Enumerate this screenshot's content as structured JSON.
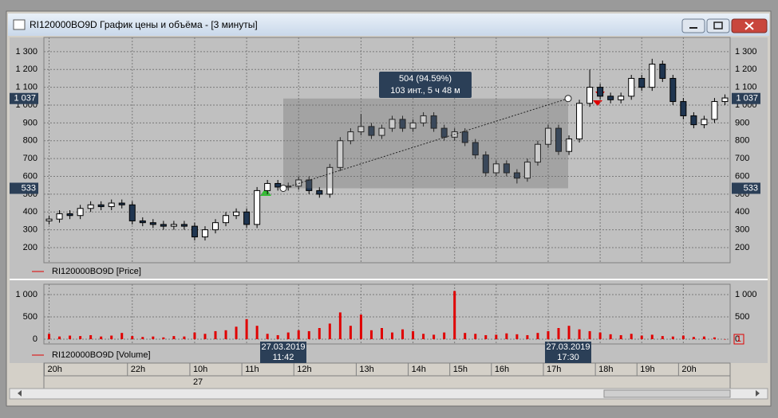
{
  "window": {
    "title": "RI120000BO9D График цены и объёма - [3 минуты]"
  },
  "chart_data": [
    {
      "type": "candlestick",
      "categories": [
        "20h",
        null,
        null,
        null,
        null,
        null,
        null,
        null,
        "22h",
        null,
        null,
        null,
        null,
        null,
        "10h",
        null,
        null,
        null,
        null,
        "11h",
        null,
        null,
        null,
        null,
        "12h",
        null,
        null,
        null,
        null,
        null,
        "13h",
        null,
        null,
        null,
        null,
        "14h",
        null,
        null,
        null,
        "15h",
        null,
        null,
        null,
        "16h",
        null,
        null,
        null,
        null,
        "17h",
        null,
        null,
        null,
        null,
        "18h",
        null,
        null,
        null,
        "19h",
        null,
        null,
        null,
        "20h",
        null,
        null,
        null,
        null
      ],
      "date_label": "27",
      "open": [
        350,
        360,
        390,
        380,
        420,
        440,
        430,
        450,
        440,
        350,
        340,
        330,
        320,
        330,
        320,
        260,
        300,
        340,
        380,
        400,
        330,
        520,
        560,
        540,
        545,
        580,
        520,
        500,
        650,
        800,
        850,
        880,
        830,
        870,
        920,
        870,
        900,
        940,
        870,
        820,
        850,
        790,
        720,
        620,
        670,
        620,
        590,
        680,
        780,
        870,
        740,
        810,
        1010,
        1100,
        1050,
        1030,
        1050,
        1150,
        1100,
        1230,
        1150,
        1020,
        940,
        890,
        920,
        1020
      ],
      "high": [
        380,
        410,
        410,
        440,
        460,
        460,
        470,
        470,
        460,
        370,
        360,
        350,
        350,
        350,
        340,
        320,
        360,
        400,
        420,
        420,
        540,
        580,
        580,
        565,
        600,
        600,
        540,
        670,
        820,
        870,
        950,
        900,
        890,
        940,
        940,
        920,
        960,
        960,
        890,
        870,
        870,
        810,
        740,
        690,
        690,
        640,
        700,
        800,
        890,
        890,
        830,
        1030,
        1200,
        1120,
        1070,
        1070,
        1170,
        1170,
        1260,
        1250,
        1170,
        1040,
        960,
        940,
        1040,
        1060
      ],
      "low": [
        330,
        340,
        360,
        360,
        400,
        410,
        410,
        420,
        330,
        320,
        310,
        300,
        300,
        300,
        240,
        240,
        280,
        320,
        360,
        310,
        310,
        500,
        520,
        520,
        525,
        500,
        480,
        480,
        630,
        780,
        830,
        810,
        810,
        850,
        850,
        850,
        880,
        850,
        800,
        800,
        770,
        700,
        600,
        600,
        600,
        560,
        570,
        660,
        760,
        720,
        720,
        790,
        990,
        1030,
        1010,
        1010,
        1030,
        1080,
        1080,
        1130,
        1000,
        920,
        870,
        870,
        900,
        1000
      ],
      "close": [
        360,
        390,
        380,
        420,
        440,
        430,
        450,
        440,
        350,
        340,
        330,
        320,
        330,
        320,
        260,
        300,
        340,
        380,
        400,
        330,
        520,
        560,
        540,
        545,
        580,
        520,
        500,
        650,
        800,
        850,
        880,
        830,
        870,
        920,
        870,
        900,
        940,
        870,
        820,
        850,
        790,
        720,
        620,
        670,
        620,
        590,
        680,
        780,
        870,
        740,
        810,
        1010,
        1100,
        1050,
        1030,
        1050,
        1150,
        1100,
        1230,
        1150,
        1020,
        940,
        890,
        920,
        1020,
        1040
      ],
      "up_color": "#ffffff",
      "down_color": "#1f3550",
      "ylim": [
        115,
        1380
      ],
      "yticks": [
        200,
        300,
        400,
        500,
        600,
        700,
        800,
        900,
        {
          "value": 1000,
          "label": "1 000"
        },
        {
          "value": 1100,
          "label": "1 100"
        },
        {
          "value": 1200,
          "label": "1 200"
        },
        {
          "value": 1300,
          "label": "1 300"
        }
      ],
      "grid": true,
      "legend": "RI120000BO9D [Price]",
      "legend_color": "#e00000",
      "measure": {
        "start": 533,
        "end": {
          "value": 1037,
          "label": "1 037"
        },
        "text": [
          "504 (94.59%)",
          "103 инт., 5 ч 48 м"
        ],
        "crosshair": [
          {
            "date": "27.03.2019",
            "time": "11:42"
          },
          {
            "date": "27.03.2019",
            "time": "17:30"
          }
        ]
      }
    },
    {
      "type": "bar",
      "values": [
        120,
        60,
        80,
        70,
        90,
        60,
        80,
        140,
        70,
        50,
        60,
        40,
        70,
        60,
        150,
        120,
        180,
        200,
        280,
        450,
        300,
        120,
        90,
        150,
        200,
        180,
        250,
        350,
        600,
        300,
        550,
        200,
        250,
        150,
        220,
        180,
        120,
        100,
        150,
        1080,
        140,
        120,
        90,
        100,
        130,
        110,
        90,
        140,
        180,
        250,
        300,
        220,
        180,
        150,
        110,
        90,
        120,
        80,
        100,
        70,
        60,
        80,
        50,
        60,
        40,
        1
      ],
      "color": "#e00000",
      "ylim": [
        -107,
        1232
      ],
      "yticks": [
        0,
        500,
        {
          "value": 1000,
          "label": "1 000"
        }
      ],
      "grid": true,
      "legend": "RI120000BO9D [Volume]",
      "legend_color": "#e00000"
    }
  ]
}
